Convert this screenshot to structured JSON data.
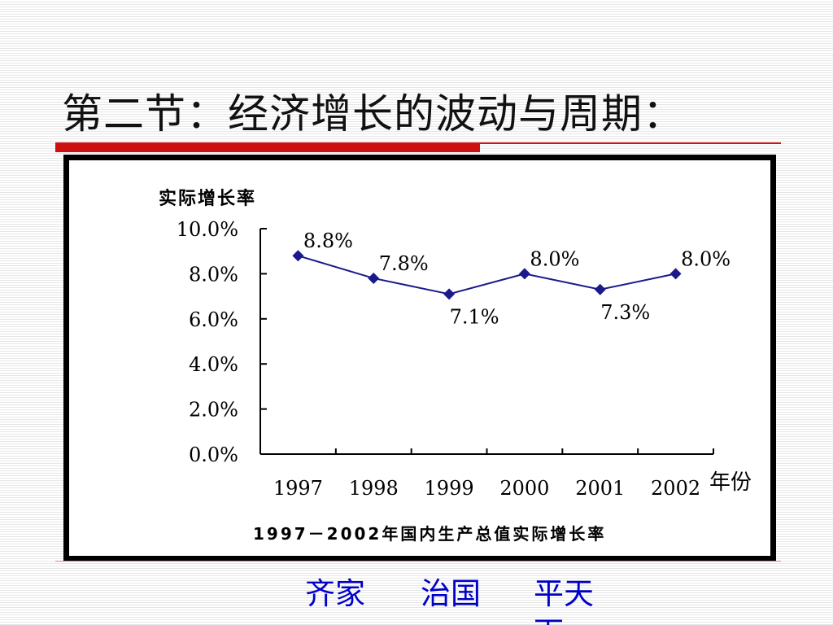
{
  "slide": {
    "title": "第二节：经济增长的波动与周期："
  },
  "chart_data": {
    "type": "line",
    "ylabel": "实际增长率",
    "xlabel": "年份",
    "title": "1997－2002年国内生产总值实际增长率",
    "x": [
      "1997",
      "1998",
      "1999",
      "2000",
      "2001",
      "2002"
    ],
    "y": [
      8.8,
      7.8,
      7.1,
      8.0,
      7.3,
      8.0
    ],
    "data_labels": [
      "8.8%",
      "7.8%",
      "7.1%",
      "8.0%",
      "7.3%",
      "8.0%"
    ],
    "ylim": [
      0,
      10
    ],
    "yticks": [
      "0.0%",
      "2.0%",
      "4.0%",
      "6.0%",
      "8.0%",
      "10.0%"
    ],
    "grid": false,
    "line_color": "#1a1a8c",
    "marker": "diamond"
  },
  "footer": {
    "links": [
      "齐家",
      "治国",
      "平天下"
    ],
    "color": "#0000cc"
  }
}
